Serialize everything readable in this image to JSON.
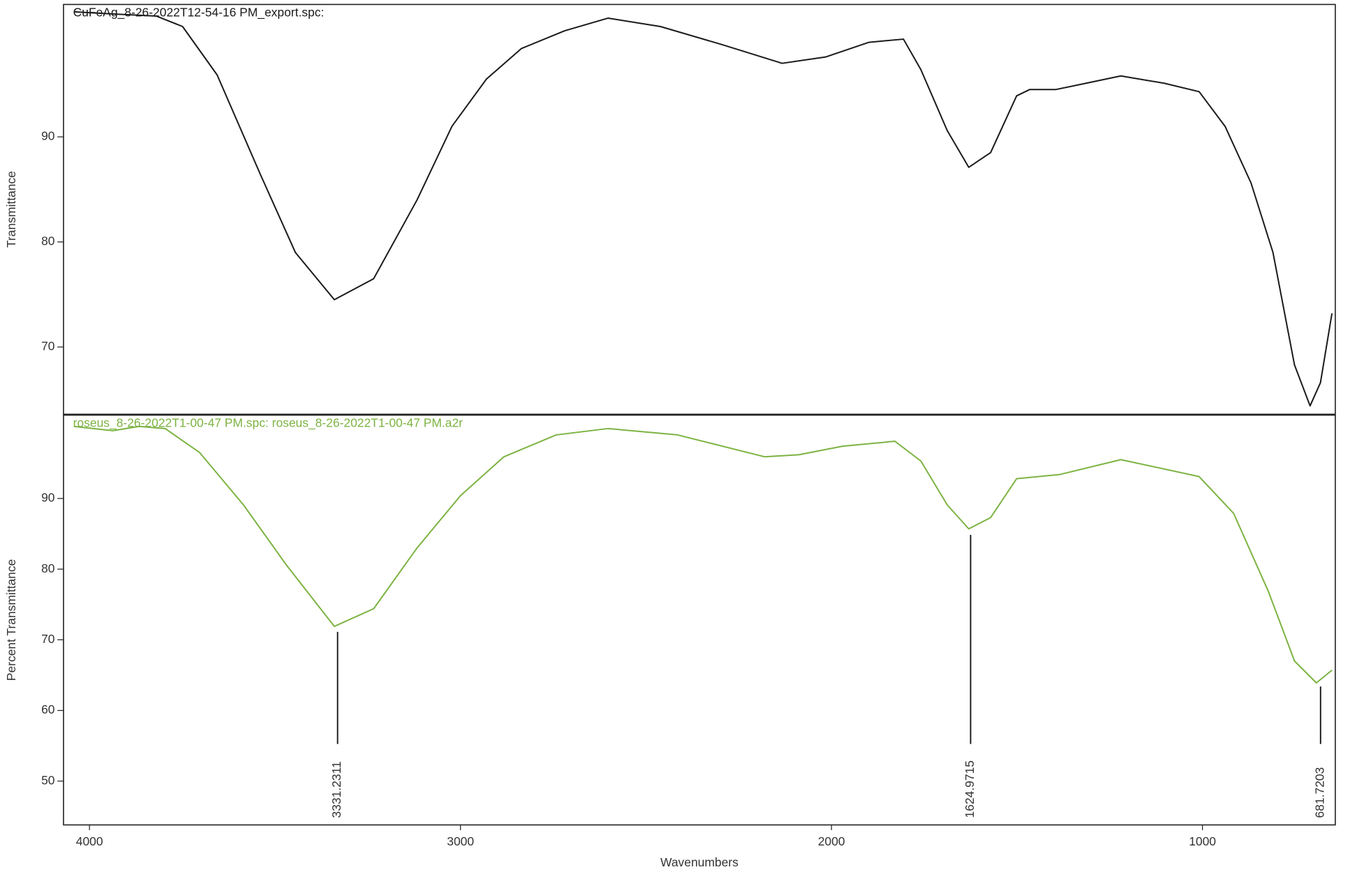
{
  "chart_data": [
    {
      "type": "line",
      "title": "CuFeAg_8-26-2022T12-54-16 PM_export.spc:",
      "ylabel": "Transmittance",
      "x": [
        4042,
        3937,
        3820,
        3749,
        3656,
        3539,
        3445,
        3340,
        3234,
        3117,
        3023,
        2930,
        2836,
        2719,
        2602,
        2461,
        2297,
        2133,
        2016,
        1899,
        1806,
        1759,
        1688,
        1630,
        1571,
        1501,
        1466,
        1396,
        1314,
        1220,
        1103,
        1009,
        939,
        869,
        810,
        752,
        710,
        682,
        651
      ],
      "series": [
        {
          "color": "#1a1a1a",
          "values": [
            101.9,
            101.7,
            101.5,
            100.5,
            95.9,
            86.4,
            79.0,
            74.5,
            76.5,
            84.0,
            91.0,
            95.5,
            98.4,
            100.1,
            101.3,
            100.5,
            98.8,
            97.0,
            97.6,
            99.0,
            99.3,
            96.4,
            90.6,
            87.1,
            88.5,
            93.9,
            94.5,
            94.5,
            95.1,
            95.8,
            95.1,
            94.3,
            91.0,
            85.6,
            79.0,
            68.3,
            64.4,
            66.6,
            73.2
          ]
        }
      ],
      "xlim": [
        4070,
        642
      ],
      "ylim": [
        63.6,
        102.6
      ],
      "yticks": [
        70,
        80,
        90
      ]
    },
    {
      "type": "line",
      "title": "roseus_8-26-2022T1-00-47 PM.spc: roseus_8-26-2022T1-00-47 PM.a2r",
      "ylabel": "Percent Transmittance",
      "xlabel": "Wavenumbers",
      "x": [
        4042,
        3937,
        3866,
        3796,
        3703,
        3585,
        3468,
        3340,
        3234,
        3117,
        3000,
        2883,
        2742,
        2602,
        2415,
        2180,
        2087,
        1970,
        1829,
        1759,
        1688,
        1630,
        1571,
        1501,
        1384,
        1220,
        1009,
        916,
        822,
        752,
        693,
        651
      ],
      "series": [
        {
          "color": "#7cb342",
          "values": [
            100.2,
            99.6,
            100.2,
            99.9,
            96.5,
            89.1,
            80.5,
            71.9,
            74.4,
            83.0,
            90.4,
            95.9,
            99.0,
            99.9,
            99.0,
            95.9,
            96.2,
            97.4,
            98.1,
            95.3,
            89.1,
            85.7,
            87.3,
            92.8,
            93.4,
            95.5,
            93.1,
            87.9,
            76.8,
            67.0,
            63.9,
            65.7
          ]
        }
      ],
      "peaks": [
        3331.2311,
        1624.9715,
        681.7203
      ],
      "xlim": [
        4070,
        642
      ],
      "xticks": [
        4000,
        3000,
        2000,
        1000
      ],
      "ylim": [
        43.8,
        101.8
      ],
      "yticks": [
        50,
        60,
        70,
        80,
        90
      ]
    }
  ]
}
